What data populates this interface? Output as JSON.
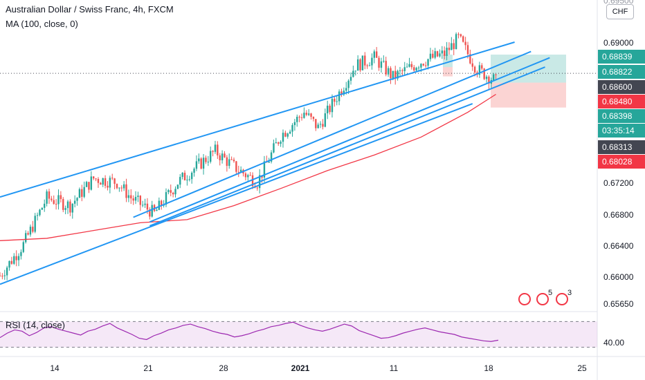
{
  "legend": {
    "title": "Australian Dollar / Swiss Franc, 4h, FXCM",
    "ma": "MA (100, close, 0)",
    "rsi": "RSI (14, close)"
  },
  "currency_button": "CHF",
  "colors": {
    "up": "#26a69a",
    "down": "#ef5350",
    "channel": "#2196f3",
    "ma": "#f23645",
    "rsi_line": "#9c27b0",
    "rsi_band": "#e1bee7",
    "tag_green": "#26a69a",
    "tag_red": "#f23645",
    "tag_dark": "#434651",
    "tag_blue": "#2962ff"
  },
  "price_tags": [
    {
      "label": "0.68839",
      "color": "#26a69a"
    },
    {
      "label": "0.68822",
      "color": "#26a69a"
    },
    {
      "label": "0.68600",
      "color": "#434651"
    },
    {
      "label": "0.68480",
      "color": "#f23645"
    },
    {
      "label": "0.68398",
      "color": "#26a69a"
    },
    {
      "label": "03:35:14",
      "color": "#26a69a"
    },
    {
      "label": "0.68313",
      "color": "#434651"
    },
    {
      "label": "0.68028",
      "color": "#f23645"
    }
  ],
  "y_ticks": [
    "0.69000",
    "0.67200",
    "0.66800",
    "0.66400",
    "0.66000",
    "0.65650"
  ],
  "y_ticks_partial": "0.69500",
  "rsi_tick": "40.00",
  "x_ticks": [
    "14",
    "21",
    "28",
    "2021",
    "11",
    "18",
    "25"
  ],
  "badges": [
    "5",
    "3"
  ],
  "chart_data": {
    "type": "candlestick",
    "title": "Australian Dollar / Swiss Franc, 4h, FXCM",
    "xlabel": "",
    "ylabel": "",
    "ylim": [
      0.6565,
      0.695
    ],
    "y_tick_values": [
      0.69,
      0.672,
      0.668,
      0.664,
      0.66,
      0.6565
    ],
    "x_ticks": [
      "14",
      "21",
      "28",
      "2021",
      "11",
      "18",
      "25"
    ],
    "x_tick_index": [
      4,
      44,
      84,
      124,
      164,
      204,
      244
    ],
    "series": [
      {
        "name": "MA (100, close, 0)",
        "points": [
          [
            0,
            0.6645
          ],
          [
            20,
            0.6648
          ],
          [
            40,
            0.6658
          ],
          [
            60,
            0.6668
          ],
          [
            80,
            0.6672
          ],
          [
            100,
            0.669
          ],
          [
            120,
            0.6712
          ],
          [
            140,
            0.6735
          ],
          [
            160,
            0.6755
          ],
          [
            180,
            0.6778
          ],
          [
            200,
            0.681
          ],
          [
            212,
            0.6833
          ]
        ]
      }
    ],
    "channel_lines": [
      {
        "p1": [
          0,
          0.6701
        ],
        "p2": [
          220,
          0.69
        ]
      },
      {
        "p1": [
          57,
          0.6675
        ],
        "p2": [
          227,
          0.6888
        ]
      },
      {
        "p1": [
          0,
          0.6589
        ],
        "p2": [
          202,
          0.6821
        ]
      },
      {
        "p1": [
          64,
          0.6664
        ],
        "p2": [
          233,
          0.6868
        ]
      },
      {
        "p1": [
          64,
          0.6669
        ],
        "p2": [
          235,
          0.688
        ]
      }
    ],
    "price_levels": [
      0.68839,
      0.68822,
      0.686,
      0.6848,
      0.68398,
      0.68313,
      0.68028
    ],
    "rsi": {
      "name": "RSI (14, close)",
      "ylim": [
        20,
        80
      ],
      "band": [
        30,
        70
      ],
      "tick": 40.0,
      "values": [
        45,
        52,
        57,
        55,
        48,
        53,
        60,
        62,
        58,
        55,
        52,
        49,
        55,
        58,
        63,
        67,
        60,
        55,
        50,
        44,
        42,
        48,
        52,
        57,
        60,
        64,
        66,
        62,
        59,
        55,
        52,
        50,
        46,
        48,
        51,
        55,
        58,
        62,
        64,
        67,
        69,
        64,
        60,
        57,
        55,
        58,
        62,
        66,
        63,
        56,
        52,
        48,
        44,
        45,
        48,
        52,
        55,
        58,
        60,
        57,
        54,
        52,
        50,
        46,
        44,
        42,
        40,
        39,
        41
      ]
    }
  }
}
